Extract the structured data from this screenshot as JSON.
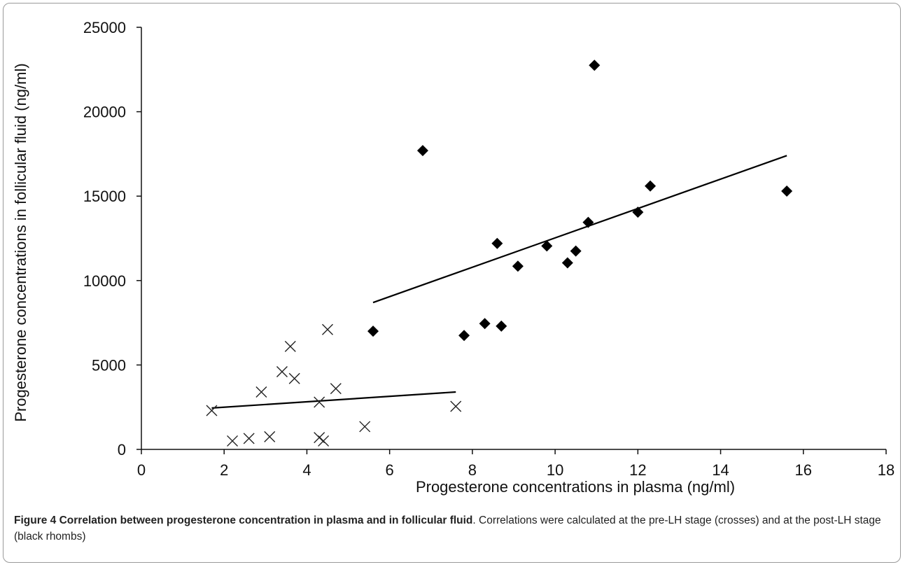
{
  "caption": {
    "figure_title": "Figure 4 Correlation between progesterone concentration in plasma and in follicular fluid",
    "figure_text": ". Correlations were calculated at the pre-LH stage (crosses) and at the post-LH stage (black rhombs)"
  },
  "chart_data": {
    "type": "scatter",
    "title": "",
    "xlabel": "Progesterone concentrations in plasma (ng/ml)",
    "ylabel": "Progesterone concentrations in follicular fluid (ng/ml)",
    "xlim": [
      0,
      18
    ],
    "ylim": [
      0,
      25000
    ],
    "x_ticks": [
      "0",
      "2",
      "4",
      "6",
      "8",
      "10",
      "12",
      "14",
      "16",
      "18"
    ],
    "y_ticks": [
      "0",
      "5000",
      "10000",
      "15000",
      "20000",
      "25000"
    ],
    "grid": false,
    "legend": "none",
    "series": [
      {
        "marker": "cross",
        "color": "#222222",
        "points": [
          [
            1.7,
            2300
          ],
          [
            2.2,
            500
          ],
          [
            2.6,
            650
          ],
          [
            2.9,
            3400
          ],
          [
            3.1,
            750
          ],
          [
            3.4,
            4600
          ],
          [
            3.6,
            6100
          ],
          [
            3.7,
            4200
          ],
          [
            4.3,
            700
          ],
          [
            4.3,
            2800
          ],
          [
            4.4,
            500
          ],
          [
            4.5,
            7100
          ],
          [
            4.7,
            3600
          ],
          [
            5.4,
            1350
          ],
          [
            7.6,
            2550
          ]
        ],
        "trendline": [
          [
            1.7,
            2450
          ],
          [
            7.6,
            3400
          ]
        ]
      },
      {
        "marker": "diamond",
        "color": "#000000",
        "points": [
          [
            5.6,
            7000
          ],
          [
            6.8,
            17700
          ],
          [
            7.8,
            6750
          ],
          [
            8.3,
            7450
          ],
          [
            8.6,
            12200
          ],
          [
            8.7,
            7300
          ],
          [
            9.1,
            10850
          ],
          [
            9.8,
            12050
          ],
          [
            10.3,
            11050
          ],
          [
            10.5,
            11750
          ],
          [
            10.8,
            13450
          ],
          [
            10.95,
            22750
          ],
          [
            12.0,
            14050
          ],
          [
            12.3,
            15600
          ],
          [
            15.6,
            15300
          ]
        ],
        "trendline": [
          [
            5.6,
            8700
          ],
          [
            15.6,
            17400
          ]
        ]
      }
    ]
  }
}
